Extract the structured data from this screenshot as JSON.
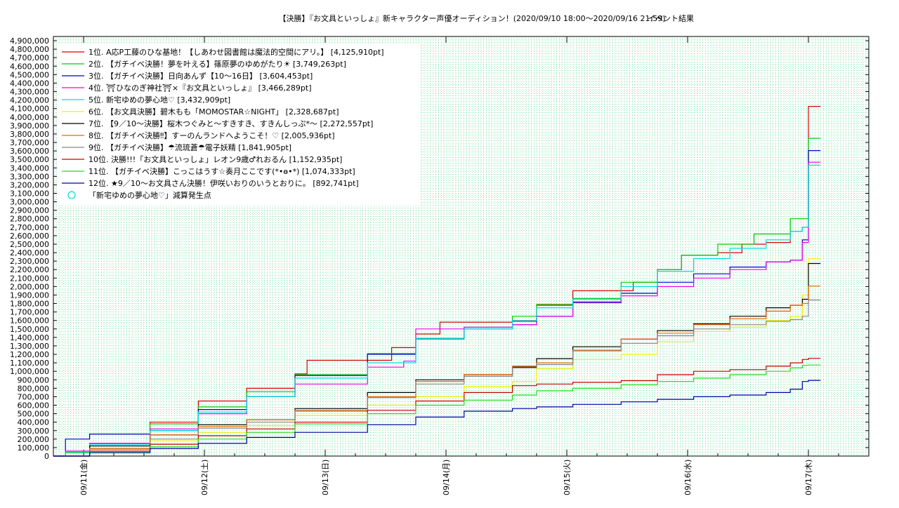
{
  "chart_data": {
    "type": "line",
    "title": "【決勝】『お文具といっしょ』新キャラクター声優オーディション！(2020/09/10 18:00〜2020/09/16 21:59)",
    "subtitle": "イベント結果",
    "ylim": [
      0,
      4950000
    ],
    "xlim": [
      0,
      6.75
    ],
    "y_ticks": [
      0,
      100000,
      200000,
      300000,
      400000,
      500000,
      600000,
      700000,
      800000,
      900000,
      1000000,
      1100000,
      1200000,
      1300000,
      1400000,
      1500000,
      1600000,
      1700000,
      1800000,
      1900000,
      2000000,
      2100000,
      2200000,
      2300000,
      2400000,
      2500000,
      2600000,
      2700000,
      2800000,
      2900000,
      3000000,
      3100000,
      3200000,
      3300000,
      3400000,
      3500000,
      3600000,
      3700000,
      3800000,
      3900000,
      4000000,
      4100000,
      4200000,
      4300000,
      4400000,
      4500000,
      4600000,
      4700000,
      4800000,
      4900000
    ],
    "y_tick_labels": [
      "0",
      "100,000",
      "200,000",
      "300,000",
      "400,000",
      "500,000",
      "600,000",
      "700,000",
      "800,000",
      "900,000",
      "1,000,000",
      "1,100,000",
      "1,200,000",
      "1,300,000",
      "1,400,000",
      "1,500,000",
      "1,600,000",
      "1,700,000",
      "1,800,000",
      "1,900,000",
      "2,000,000",
      "2,100,000",
      "2,200,000",
      "2,300,000",
      "2,400,000",
      "2,500,000",
      "2,600,000",
      "2,700,000",
      "2,800,000",
      "2,900,000",
      "3,000,000",
      "3,100,000",
      "3,200,000",
      "3,300,000",
      "3,400,000",
      "3,500,000",
      "3,600,000",
      "3,700,000",
      "3,800,000",
      "3,900,000",
      "4,000,000",
      "4,100,000",
      "4,200,000",
      "4,300,000",
      "4,400,000",
      "4,500,000",
      "4,600,000",
      "4,700,000",
      "4,800,000",
      "4,900,000"
    ],
    "x_ticks": [
      0.25,
      1.25,
      2.25,
      3.25,
      4.25,
      5.25,
      6.25
    ],
    "x_tick_labels": [
      "09/11(金)",
      "09/12(土)",
      "09/13(日)",
      "09/14(月)",
      "09/15(火)",
      "09/16(水)",
      "09/17(木)"
    ],
    "grid": true,
    "legend_position": "top-left",
    "series": [
      {
        "name": "1位. A応P工藤のひな基地！【しあわせ図書館は魔法的空間にアリ。】 [4,125,910pt]",
        "color": "#dd0000",
        "points": [
          [
            0,
            0
          ],
          [
            0.1,
            50000
          ],
          [
            0.3,
            150000
          ],
          [
            0.8,
            400000
          ],
          [
            1.2,
            650000
          ],
          [
            1.6,
            800000
          ],
          [
            2.0,
            970000
          ],
          [
            2.1,
            1130000
          ],
          [
            2.8,
            1280000
          ],
          [
            3.0,
            1440000
          ],
          [
            3.2,
            1580000
          ],
          [
            3.8,
            1590000
          ],
          [
            4.0,
            1780000
          ],
          [
            4.3,
            1950000
          ],
          [
            4.8,
            2050000
          ],
          [
            5.0,
            2200000
          ],
          [
            5.2,
            2370000
          ],
          [
            5.5,
            2400000
          ],
          [
            5.7,
            2500000
          ],
          [
            5.9,
            2520000
          ],
          [
            6.1,
            2650000
          ],
          [
            6.2,
            2700000
          ],
          [
            6.25,
            4125910
          ],
          [
            6.35,
            4125910
          ]
        ]
      },
      {
        "name": "2位. 【ガチイベ決勝！夢を叶える】篠原夢のゆめがたり☀ [3,749,263pt]",
        "color": "#00cc00",
        "points": [
          [
            0,
            0
          ],
          [
            0.1,
            40000
          ],
          [
            0.3,
            150000
          ],
          [
            0.8,
            380000
          ],
          [
            1.2,
            580000
          ],
          [
            1.6,
            760000
          ],
          [
            2.0,
            960000
          ],
          [
            2.6,
            1210000
          ],
          [
            3.0,
            1380000
          ],
          [
            3.4,
            1520000
          ],
          [
            3.8,
            1650000
          ],
          [
            4.0,
            1790000
          ],
          [
            4.3,
            1860000
          ],
          [
            4.7,
            2050000
          ],
          [
            5.0,
            2200000
          ],
          [
            5.2,
            2370000
          ],
          [
            5.5,
            2500000
          ],
          [
            5.8,
            2620000
          ],
          [
            6.1,
            2800000
          ],
          [
            6.2,
            2800000
          ],
          [
            6.25,
            3749263
          ],
          [
            6.35,
            3749263
          ]
        ]
      },
      {
        "name": "3位. 【ガチイベ決勝】日向あんず【10〜16日】 [3,604,453pt]",
        "color": "#0000cc",
        "points": [
          [
            0,
            0
          ],
          [
            0.1,
            200000
          ],
          [
            0.3,
            260000
          ],
          [
            0.8,
            300000
          ],
          [
            1.2,
            550000
          ],
          [
            1.6,
            700000
          ],
          [
            2.0,
            950000
          ],
          [
            2.6,
            1200000
          ],
          [
            3.0,
            1390000
          ],
          [
            3.4,
            1500000
          ],
          [
            3.8,
            1550000
          ],
          [
            4.0,
            1650000
          ],
          [
            4.3,
            1810000
          ],
          [
            4.7,
            1920000
          ],
          [
            5.0,
            2050000
          ],
          [
            5.3,
            2150000
          ],
          [
            5.6,
            2230000
          ],
          [
            5.9,
            2290000
          ],
          [
            6.1,
            2310000
          ],
          [
            6.2,
            2550000
          ],
          [
            6.25,
            3604453
          ],
          [
            6.35,
            3604453
          ]
        ]
      },
      {
        "name": "4位. ⛩ひなのぎ神社⛩×『お文具といっしょ』 [3,466,289pt]",
        "color": "#ee00ee",
        "points": [
          [
            0,
            0
          ],
          [
            0.1,
            60000
          ],
          [
            0.3,
            150000
          ],
          [
            0.8,
            320000
          ],
          [
            1.2,
            500000
          ],
          [
            1.6,
            700000
          ],
          [
            2.0,
            850000
          ],
          [
            2.6,
            1050000
          ],
          [
            2.9,
            1120000
          ],
          [
            3.0,
            1500000
          ],
          [
            3.4,
            1520000
          ],
          [
            3.8,
            1550000
          ],
          [
            4.0,
            1650000
          ],
          [
            4.3,
            1820000
          ],
          [
            4.7,
            1890000
          ],
          [
            5.0,
            2000000
          ],
          [
            5.3,
            2100000
          ],
          [
            5.6,
            2200000
          ],
          [
            5.9,
            2290000
          ],
          [
            6.1,
            2310000
          ],
          [
            6.2,
            2520000
          ],
          [
            6.25,
            3466289
          ],
          [
            6.35,
            3466289
          ]
        ]
      },
      {
        "name": "5位. 新宅ゆめの夢心地♡ [3,432,909pt]",
        "color": "#00dddd",
        "points": [
          [
            0,
            0
          ],
          [
            0.1,
            50000
          ],
          [
            0.3,
            140000
          ],
          [
            0.8,
            300000
          ],
          [
            1.2,
            520000
          ],
          [
            1.6,
            700000
          ],
          [
            2.0,
            920000
          ],
          [
            2.6,
            1100000
          ],
          [
            3.0,
            1390000
          ],
          [
            3.4,
            1500000
          ],
          [
            3.8,
            1600000
          ],
          [
            4.0,
            1750000
          ],
          [
            4.3,
            1850000
          ],
          [
            4.7,
            2000000
          ],
          [
            5.0,
            2180000
          ],
          [
            5.3,
            2330000
          ],
          [
            5.6,
            2450000
          ],
          [
            5.9,
            2550000
          ],
          [
            6.1,
            2650000
          ],
          [
            6.2,
            2700000
          ],
          [
            6.25,
            3432909
          ],
          [
            6.35,
            3432909
          ]
        ]
      },
      {
        "name": "6位. 【お文具決勝】碧木もも「MOMOSTAR☆NIGHT」 [2,328,687pt]",
        "color": "#f0f000",
        "points": [
          [
            0,
            0
          ],
          [
            0.3,
            80000
          ],
          [
            0.8,
            180000
          ],
          [
            1.2,
            280000
          ],
          [
            1.6,
            360000
          ],
          [
            2.0,
            480000
          ],
          [
            2.6,
            600000
          ],
          [
            3.0,
            700000
          ],
          [
            3.4,
            820000
          ],
          [
            3.8,
            880000
          ],
          [
            4.0,
            1030000
          ],
          [
            4.3,
            1140000
          ],
          [
            4.7,
            1200000
          ],
          [
            5.0,
            1350000
          ],
          [
            5.3,
            1470000
          ],
          [
            5.6,
            1520000
          ],
          [
            5.9,
            1600000
          ],
          [
            6.1,
            1650000
          ],
          [
            6.2,
            1900000
          ],
          [
            6.25,
            2328687
          ],
          [
            6.35,
            2328687
          ]
        ]
      },
      {
        "name": "7位. 【9／10〜決勝】桜木つぐみと〜すきすき、すきんしっぷ*〜 [2,272,557pt]",
        "color": "#000000",
        "points": [
          [
            0,
            0
          ],
          [
            0.3,
            120000
          ],
          [
            0.8,
            250000
          ],
          [
            1.2,
            370000
          ],
          [
            1.6,
            430000
          ],
          [
            2.0,
            560000
          ],
          [
            2.6,
            750000
          ],
          [
            3.0,
            900000
          ],
          [
            3.4,
            960000
          ],
          [
            3.8,
            1050000
          ],
          [
            4.0,
            1150000
          ],
          [
            4.3,
            1290000
          ],
          [
            4.7,
            1380000
          ],
          [
            5.0,
            1480000
          ],
          [
            5.3,
            1560000
          ],
          [
            5.6,
            1650000
          ],
          [
            5.9,
            1750000
          ],
          [
            6.1,
            1780000
          ],
          [
            6.2,
            1850000
          ],
          [
            6.25,
            2272557
          ],
          [
            6.35,
            2272557
          ]
        ]
      },
      {
        "name": "8位. 【ガチイベ決勝‼】すーのんランドへようこそ！♡ [2,005,936pt]",
        "color": "#ee6600",
        "points": [
          [
            0,
            0
          ],
          [
            0.3,
            90000
          ],
          [
            0.8,
            250000
          ],
          [
            1.2,
            350000
          ],
          [
            1.6,
            430000
          ],
          [
            2.0,
            540000
          ],
          [
            2.6,
            700000
          ],
          [
            3.0,
            880000
          ],
          [
            3.4,
            960000
          ],
          [
            3.8,
            1060000
          ],
          [
            4.0,
            1100000
          ],
          [
            4.3,
            1250000
          ],
          [
            4.7,
            1380000
          ],
          [
            5.0,
            1450000
          ],
          [
            5.3,
            1550000
          ],
          [
            5.6,
            1620000
          ],
          [
            5.9,
            1710000
          ],
          [
            6.1,
            1780000
          ],
          [
            6.2,
            1800000
          ],
          [
            6.25,
            2005936
          ],
          [
            6.35,
            2005936
          ]
        ]
      },
      {
        "name": "9位. 【ガチイベ決勝】☂流琉蒼☂電子妖精 [1,841,905pt]",
        "color": "#888888",
        "points": [
          [
            0,
            0
          ],
          [
            0.3,
            80000
          ],
          [
            0.8,
            200000
          ],
          [
            1.2,
            330000
          ],
          [
            1.6,
            400000
          ],
          [
            2.0,
            530000
          ],
          [
            2.6,
            690000
          ],
          [
            3.0,
            850000
          ],
          [
            3.4,
            940000
          ],
          [
            3.8,
            1040000
          ],
          [
            4.0,
            1080000
          ],
          [
            4.3,
            1240000
          ],
          [
            4.7,
            1330000
          ],
          [
            5.0,
            1420000
          ],
          [
            5.3,
            1500000
          ],
          [
            5.6,
            1550000
          ],
          [
            5.9,
            1590000
          ],
          [
            6.1,
            1610000
          ],
          [
            6.2,
            1650000
          ],
          [
            6.25,
            1841905
          ],
          [
            6.35,
            1841905
          ]
        ]
      },
      {
        "name": "10位. 決勝!!!「お文具といっしょ」レオン9歳♂れおるん [1,152,935pt]",
        "color": "#cc0000",
        "points": [
          [
            0,
            0
          ],
          [
            0.3,
            60000
          ],
          [
            0.8,
            140000
          ],
          [
            1.2,
            240000
          ],
          [
            1.6,
            320000
          ],
          [
            2.0,
            400000
          ],
          [
            2.6,
            540000
          ],
          [
            3.0,
            650000
          ],
          [
            3.4,
            750000
          ],
          [
            3.8,
            830000
          ],
          [
            4.0,
            850000
          ],
          [
            4.3,
            870000
          ],
          [
            4.7,
            890000
          ],
          [
            5.0,
            960000
          ],
          [
            5.3,
            1000000
          ],
          [
            5.6,
            1020000
          ],
          [
            5.9,
            1060000
          ],
          [
            6.1,
            1100000
          ],
          [
            6.2,
            1140000
          ],
          [
            6.25,
            1152935
          ],
          [
            6.35,
            1152935
          ]
        ]
      },
      {
        "name": "11位. 【ガチイベ決勝】こっこはうす☆奏月ここです(*•ө•*) [1,074,333pt]",
        "color": "#22dd22",
        "points": [
          [
            0,
            0
          ],
          [
            0.3,
            50000
          ],
          [
            0.8,
            110000
          ],
          [
            1.2,
            200000
          ],
          [
            1.6,
            280000
          ],
          [
            2.0,
            380000
          ],
          [
            2.6,
            500000
          ],
          [
            3.0,
            600000
          ],
          [
            3.4,
            660000
          ],
          [
            3.8,
            720000
          ],
          [
            4.0,
            770000
          ],
          [
            4.3,
            800000
          ],
          [
            4.7,
            840000
          ],
          [
            5.0,
            880000
          ],
          [
            5.3,
            920000
          ],
          [
            5.6,
            960000
          ],
          [
            5.9,
            1000000
          ],
          [
            6.1,
            1040000
          ],
          [
            6.2,
            1070000
          ],
          [
            6.25,
            1074333
          ],
          [
            6.35,
            1074333
          ]
        ]
      },
      {
        "name": "12位. ★9／10〜お文具さん決勝！伊咲いおりのいうとおりに。 [892,741pt]",
        "color": "#0000aa",
        "points": [
          [
            0,
            0
          ],
          [
            0.3,
            40000
          ],
          [
            0.8,
            90000
          ],
          [
            1.2,
            150000
          ],
          [
            1.6,
            220000
          ],
          [
            2.0,
            280000
          ],
          [
            2.6,
            370000
          ],
          [
            3.0,
            460000
          ],
          [
            3.4,
            530000
          ],
          [
            3.8,
            560000
          ],
          [
            4.0,
            580000
          ],
          [
            4.3,
            610000
          ],
          [
            4.7,
            640000
          ],
          [
            5.0,
            670000
          ],
          [
            5.3,
            700000
          ],
          [
            5.6,
            720000
          ],
          [
            5.9,
            750000
          ],
          [
            6.1,
            790000
          ],
          [
            6.2,
            880000
          ],
          [
            6.25,
            892741
          ],
          [
            6.35,
            892741
          ]
        ]
      }
    ],
    "marker_legend": {
      "label": "「新宅ゆめの夢心地♡」減算発生点",
      "color": "#00dddd",
      "shape": "circle"
    }
  }
}
